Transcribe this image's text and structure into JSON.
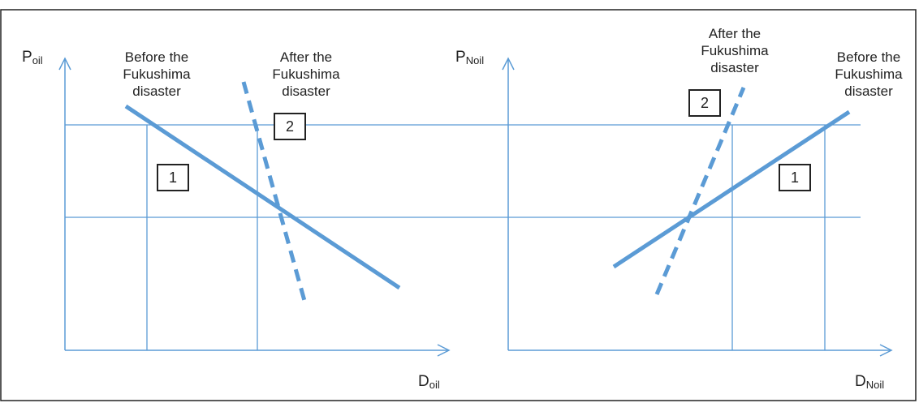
{
  "left_panel": {
    "y_axis": {
      "symbol": "P",
      "subscript": "oil"
    },
    "x_axis": {
      "symbol": "D",
      "subscript": "oil"
    },
    "before_label": [
      "Before the",
      "Fukushima",
      "disaster"
    ],
    "after_label": [
      "After the",
      "Fukushima",
      "disaster"
    ],
    "box_before": "1",
    "box_after": "2"
  },
  "right_panel": {
    "y_axis": {
      "symbol": "P",
      "subscript": "Noil"
    },
    "x_axis": {
      "symbol": "D",
      "subscript": "Noil"
    },
    "before_label": [
      "Before the",
      "Fukushima",
      "disaster"
    ],
    "after_label": [
      "After the",
      "Fukushima",
      "disaster"
    ],
    "box_before": "1",
    "box_after": "2"
  },
  "colors": {
    "curve": "#5b9bd5",
    "guide": "#5b9bd5",
    "border": "#222222"
  }
}
